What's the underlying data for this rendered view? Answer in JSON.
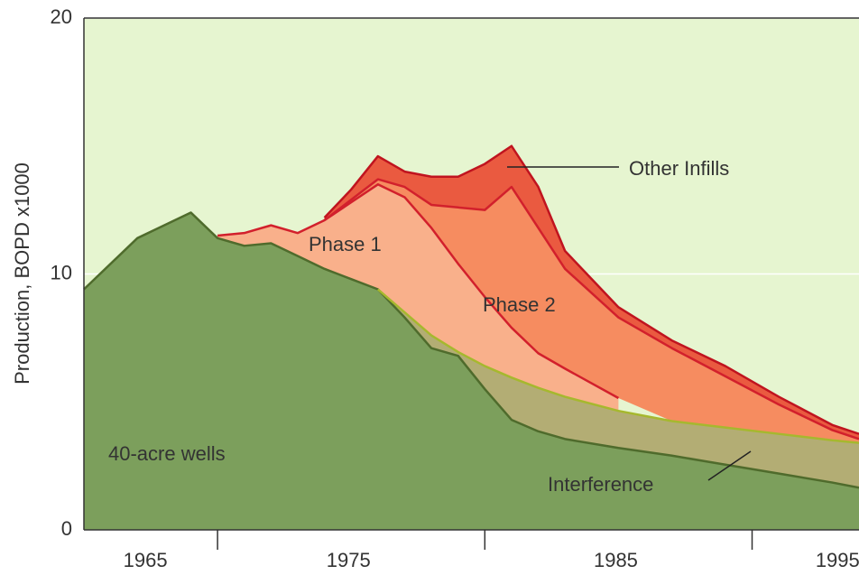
{
  "chart_data": {
    "type": "stacked_area",
    "y_label": "Production, BOPD x1000",
    "x": [
      1965,
      1967,
      1969,
      1970,
      1971,
      1972,
      1973,
      1974,
      1975,
      1976,
      1977,
      1978,
      1979,
      1980,
      1981,
      1982,
      1983,
      1985,
      1987,
      1989,
      1991,
      1993,
      1994
    ],
    "series": [
      {
        "name": "40-acre wells",
        "color": "#7c9f5c",
        "line_color": "#4f6b2c",
        "values": [
          9.4,
          11.4,
          12.4,
          11.4,
          11.1,
          11.2,
          10.7,
          10.2,
          9.8,
          9.4,
          8.3,
          7.1,
          6.8,
          5.5,
          4.3,
          3.85,
          3.55,
          3.2,
          2.9,
          2.55,
          2.2,
          1.85,
          1.65
        ]
      },
      {
        "name": "Interference",
        "color": "#b3ad74",
        "line_color": "#a6b82e",
        "values": [
          null,
          null,
          null,
          null,
          null,
          null,
          null,
          null,
          null,
          0,
          0.2,
          0.5,
          0.15,
          0.9,
          1.65,
          1.7,
          1.65,
          1.45,
          1.35,
          1.45,
          1.55,
          1.65,
          1.75
        ]
      },
      {
        "name": "Phase 1",
        "color": "#f9b08b",
        "line_color": "#d2202c",
        "values": [
          null,
          null,
          null,
          0.1,
          0.5,
          0.7,
          0.9,
          1.9,
          3.0,
          4.1,
          4.5,
          4.2,
          3.45,
          2.7,
          1.95,
          1.35,
          1.1,
          0.5,
          null,
          null,
          null,
          null,
          null
        ]
      },
      {
        "name": "Phase 2",
        "color": "#f68c60",
        "line_color": "#d2202c",
        "values": [
          null,
          null,
          null,
          null,
          null,
          null,
          null,
          0,
          0.1,
          0.2,
          0.4,
          0.9,
          2.2,
          3.4,
          5.5,
          4.9,
          3.9,
          3.15,
          2.85,
          2.0,
          1.15,
          0.4,
          0.15
        ]
      },
      {
        "name": "Other Infills",
        "color": "#ea5a40",
        "line_color": "#c0141f",
        "values": [
          null,
          null,
          null,
          null,
          null,
          null,
          null,
          0.1,
          0.4,
          0.9,
          0.6,
          1.1,
          1.2,
          1.8,
          1.6,
          1.6,
          0.7,
          0.4,
          0.3,
          0.4,
          0.3,
          0.2,
          0.2
        ]
      }
    ],
    "xlim": [
      1965,
      1994
    ],
    "xticks": [
      1970,
      1980,
      1990
    ],
    "xlabels": [
      {
        "value": 1967.3,
        "label": "1965"
      },
      {
        "value": 1974.9,
        "label": "1975"
      },
      {
        "value": 1984.9,
        "label": "1985"
      },
      {
        "value": 1993.2,
        "label": "1995"
      }
    ],
    "ylim": [
      0,
      20
    ],
    "yticks": [
      0,
      10,
      20
    ],
    "grid": true,
    "background": "#e6f5d0"
  }
}
